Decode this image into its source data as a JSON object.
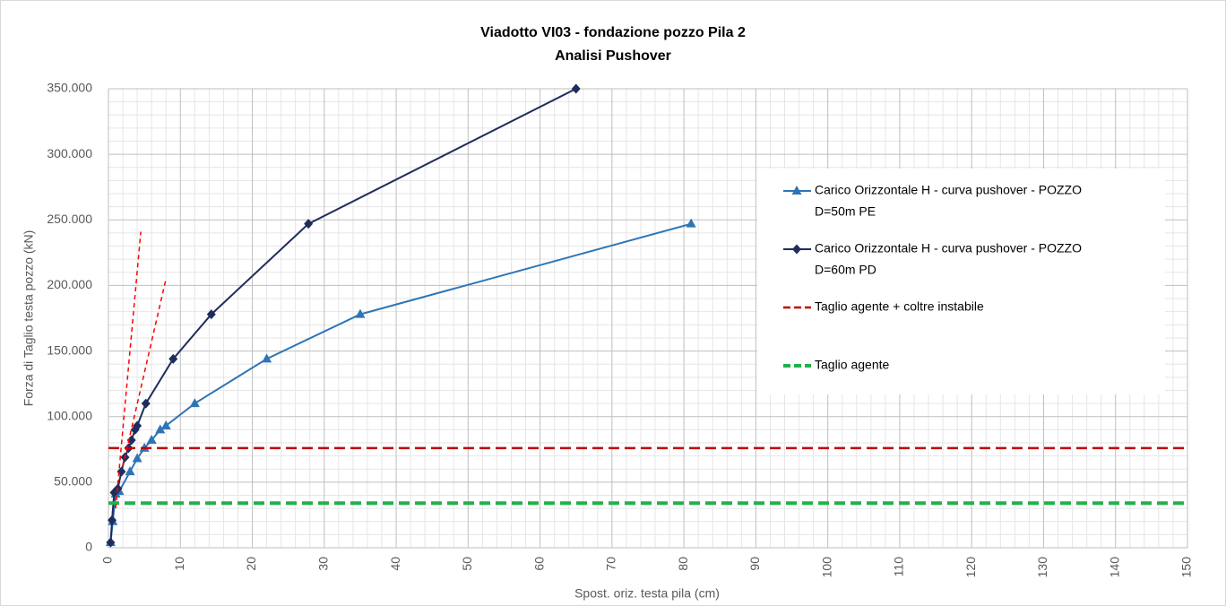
{
  "chart_data": {
    "type": "line",
    "title": "Viadotto VI03 - fondazione pozzo Pila 2",
    "subtitle": "Analisi Pushover",
    "x_label": "Spost. oriz. testa pila (cm)",
    "y_label": "Forza di Taglio testa pozzo (kN)",
    "xlim": [
      0,
      150
    ],
    "ylim": [
      0,
      350000
    ],
    "xticks": [
      0,
      10,
      20,
      30,
      40,
      50,
      60,
      70,
      80,
      90,
      100,
      110,
      120,
      130,
      140,
      150
    ],
    "yticks": [
      0,
      {
        "value": 50000,
        "label": "50.000"
      },
      {
        "value": 100000,
        "label": "100.000"
      },
      {
        "value": 150000,
        "label": "150.000"
      },
      {
        "value": 200000,
        "label": "200.000"
      },
      {
        "value": 250000,
        "label": "250.000"
      },
      {
        "value": 300000,
        "label": "300.000"
      },
      {
        "value": 350000,
        "label": "350.000"
      }
    ],
    "grid": true,
    "minor_grid": true,
    "legend": "right",
    "series": [
      {
        "name": "Carico Orizzontale H - curva pushover  - POZZO D=50m PE",
        "legend_lines": [
          "Carico Orizzontale H - curva pushover  - POZZO",
          "D=50m PE"
        ],
        "color": "#2e75b6",
        "marker": "triangle",
        "dash": "solid",
        "x": [
          0.3,
          0.6,
          1,
          1.5,
          3,
          4,
          5,
          6,
          7.2,
          8,
          12,
          22,
          35,
          81
        ],
        "values": [
          4000,
          20000,
          41000,
          43000,
          58000,
          68000,
          76000,
          82000,
          90000,
          93000,
          110000,
          144000,
          178000,
          247000
        ]
      },
      {
        "name": "Carico Orizzontale H - curva pushover  - POZZO D=60m PD",
        "legend_lines": [
          "Carico Orizzontale H - curva pushover  - POZZO",
          "D=60m PD"
        ],
        "color": "#1f2d5c",
        "marker": "diamond",
        "dash": "solid",
        "x": [
          0.3,
          0.5,
          0.8,
          1.3,
          1.8,
          2.3,
          2.8,
          3.2,
          3.7,
          4,
          5.2,
          9,
          14.3,
          27.8,
          65
        ],
        "values": [
          4000,
          21000,
          42000,
          45000,
          58000,
          69000,
          76000,
          82000,
          90000,
          93000,
          110000,
          144000,
          178000,
          247000,
          350000
        ]
      },
      {
        "name": "Taglio agente + coltre instabile",
        "legend_lines": [
          "Taglio agente + coltre instabile"
        ],
        "color": "#c00000",
        "marker": "none",
        "dash": "long",
        "x": [
          0,
          150
        ],
        "values": [
          76000,
          76000
        ]
      },
      {
        "name": "Taglio agente",
        "legend_lines": [
          "Taglio agente"
        ],
        "color": "#22b14c",
        "marker": "none",
        "dash": "thick",
        "x": [
          0,
          150
        ],
        "values": [
          34000,
          34000
        ]
      },
      {
        "color": "#ff0000",
        "marker": "none",
        "dash": "thin",
        "x": [
          1,
          4.5
        ],
        "values": [
          30000,
          241000
        ]
      },
      {
        "color": "#ff0000",
        "marker": "none",
        "dash": "thin",
        "x": [
          2,
          8
        ],
        "values": [
          62000,
          205000
        ]
      }
    ]
  }
}
